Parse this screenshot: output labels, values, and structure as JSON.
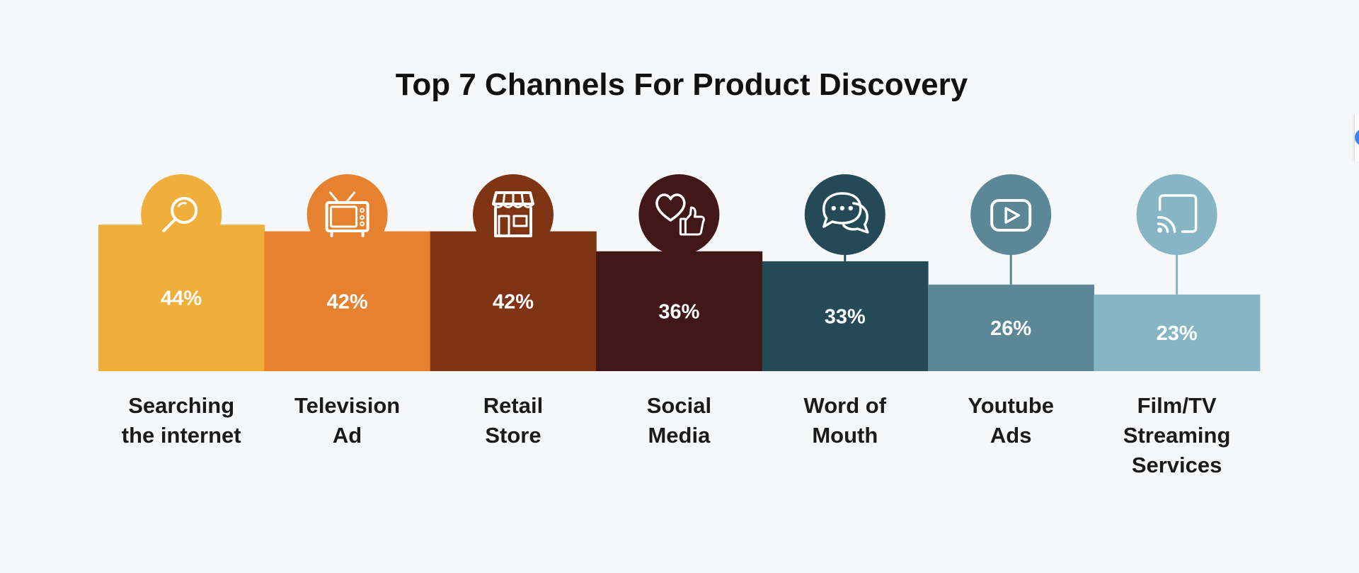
{
  "chart_data": {
    "type": "bar",
    "title": "Top 7 Channels For Product Discovery",
    "xlabel": "",
    "ylabel": "",
    "ylim": [
      0,
      44
    ],
    "grid": false,
    "categories": [
      [
        "Searching",
        "the internet"
      ],
      [
        "Television",
        "Ad"
      ],
      [
        "Retail",
        "Store"
      ],
      [
        "Social",
        "Media"
      ],
      [
        "Word of",
        "Mouth"
      ],
      [
        "Youtube",
        "Ads"
      ],
      [
        "Film/TV",
        "Streaming",
        "Services"
      ]
    ],
    "values": [
      44,
      42,
      42,
      36,
      33,
      26,
      23
    ],
    "value_labels": [
      "44%",
      "42%",
      "42%",
      "36%",
      "33%",
      "26%",
      "23%"
    ],
    "colors": [
      "#f0ae3b",
      "#e5812f",
      "#7f3414",
      "#421718",
      "#244957",
      "#5b8796",
      "#86b6c3"
    ],
    "icons": [
      "search-icon",
      "tv-icon",
      "storefront-icon",
      "heart-thumbs-up-icon",
      "chat-bubbles-icon",
      "play-button-icon",
      "cast-icon"
    ]
  }
}
